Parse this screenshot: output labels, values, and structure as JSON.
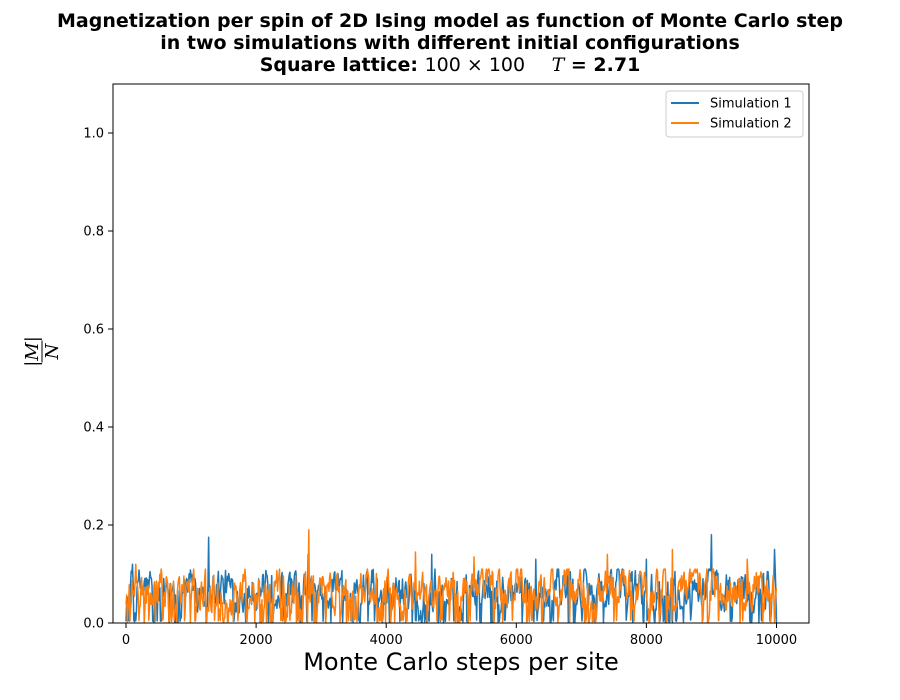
{
  "title": {
    "line1": "Magnetization per spin of 2D Ising model as function of Monte Carlo step",
    "line2": "in two simulations with different initial configurations",
    "line3_prefix": "Square lattice:",
    "line3_lattice": "100 × 100",
    "line3_T_symbol": "T",
    "line3_T_value": "= 2.71"
  },
  "chart_data": {
    "type": "line",
    "xlabel": "Monte Carlo steps per site",
    "ylabel_num": "|M|",
    "ylabel_den": "N",
    "xlim": [
      -200,
      10500
    ],
    "ylim": [
      0,
      1.1
    ],
    "x_ticks": [
      0,
      2000,
      4000,
      6000,
      8000,
      10000
    ],
    "x_tick_labels": [
      "0",
      "2000",
      "4000",
      "6000",
      "8000",
      "10000"
    ],
    "y_ticks": [
      0.0,
      0.2,
      0.4,
      0.6,
      0.8,
      1.0
    ],
    "y_tick_labels": [
      "0.0",
      "0.2",
      "0.4",
      "0.6",
      "0.8",
      "1.0"
    ],
    "grid": false,
    "legend_position": "top-right",
    "x_range": [
      0,
      10000
    ],
    "series": [
      {
        "name": "Simulation 1",
        "color": "#1f77b4",
        "typical_max": 0.1,
        "peaks": [
          [
            100,
            0.12
          ],
          [
            1270,
            0.175
          ],
          [
            2800,
            0.14
          ],
          [
            4700,
            0.14
          ],
          [
            6300,
            0.13
          ],
          [
            8000,
            0.13
          ],
          [
            9000,
            0.18
          ],
          [
            9970,
            0.15
          ]
        ]
      },
      {
        "name": "Simulation 2",
        "color": "#ff7f0e",
        "typical_max": 0.1,
        "peaks": [
          [
            150,
            0.12
          ],
          [
            2810,
            0.19
          ],
          [
            4450,
            0.145
          ],
          [
            5350,
            0.135
          ],
          [
            7400,
            0.14
          ],
          [
            8400,
            0.15
          ],
          [
            9550,
            0.13
          ]
        ]
      }
    ]
  }
}
